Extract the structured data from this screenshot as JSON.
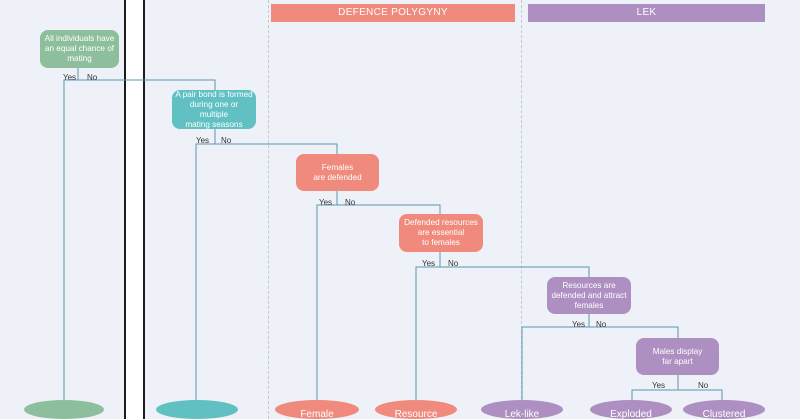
{
  "colors": {
    "green": "#8dbf9c",
    "teal": "#60c0c2",
    "salmon": "#ef8a7c",
    "purple": "#ae8fc1",
    "line": "#5a97b0"
  },
  "headers": {
    "defence_polygyny": "DEFENCE POLYGYNY",
    "lek": "LEK"
  },
  "nodes": {
    "equal_chance": "All individuals have\nan equal chance of\nmating",
    "pair_bond": "A pair bond is formed\nduring one or multiple\nmating seasons",
    "females_defended": "Females\nare defended",
    "resources_essential": "Defended resources\nare essential\nto females",
    "resources_attract": "Resources are\ndefended and attract\nfemales",
    "males_display": "Males display\nfar apart"
  },
  "outcomes": {
    "female_defence": "Female",
    "resource_defence": "Resource",
    "lek_like": "Lek-like",
    "exploded_lek": "Exploded",
    "clustered_lek": "Clustered"
  },
  "branch_labels": {
    "yes": "Yes",
    "no": "No"
  }
}
